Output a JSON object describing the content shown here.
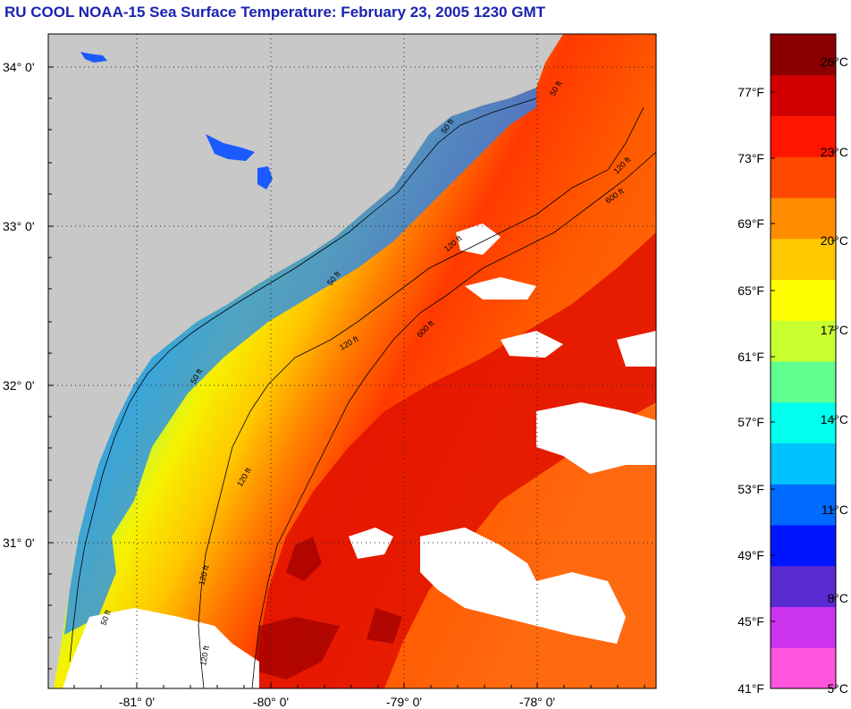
{
  "title": "RU COOL  NOAA-15  Sea Surface Temperature:  February 23, 2005 1230 GMT",
  "map": {
    "lat_labels": [
      "34° 0'",
      "33° 0'",
      "32° 0'",
      "31° 0'"
    ],
    "lon_labels": [
      "-81° 0'",
      "-80° 0'",
      "-79° 0'",
      "-78° 0'"
    ],
    "contour_labels": [
      "50 ft",
      "50 ft",
      "50 ft",
      "50 ft",
      "120 ft",
      "120 ft",
      "120 ft",
      "120 ft",
      "120 ft",
      "600 ft",
      "600 ft",
      "120 ft",
      "50 ft"
    ],
    "colors": {
      "land": "#c8c8c8",
      "cloud": "#ffffff",
      "frame": "#000000"
    }
  },
  "colorbar": {
    "fahrenheit_labels": [
      "77°F",
      "73°F",
      "69°F",
      "65°F",
      "61°F",
      "57°F",
      "53°F",
      "49°F",
      "45°F",
      "41°F"
    ],
    "celsius_labels": [
      "26°C",
      "23°C",
      "20°C",
      "17°C",
      "14°C",
      "11°C",
      "8°C",
      "5°C"
    ],
    "range_c": [
      5,
      27.5
    ],
    "colors_bottom_to_top": [
      "#ff55dd",
      "#cc33ee",
      "#5a2bd0",
      "#0015ff",
      "#006bff",
      "#00c2ff",
      "#00ffee",
      "#60ff90",
      "#c8ff30",
      "#ffff00",
      "#ffc800",
      "#ff8c00",
      "#ff4800",
      "#ff1500",
      "#d00000",
      "#8a0000"
    ]
  }
}
